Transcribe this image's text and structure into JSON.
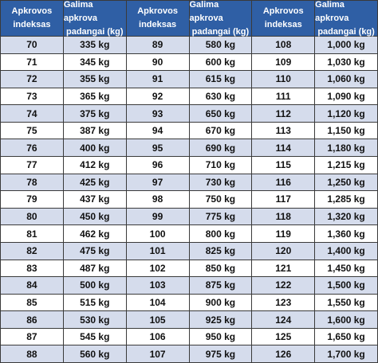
{
  "table": {
    "headers": [
      [
        "Apkrovos",
        "indeksas"
      ],
      [
        "Galima apkrova",
        "padangai (kg)"
      ],
      [
        "Apkrovos",
        "indeksas"
      ],
      [
        "Galima apkrova",
        "padangai (kg)"
      ],
      [
        "Apkrovos",
        "indeksas"
      ],
      [
        "Galima apkrova",
        "padangai (kg)"
      ]
    ],
    "rows": [
      [
        "70",
        "335 kg",
        "89",
        "580 kg",
        "108",
        "1,000 kg"
      ],
      [
        "71",
        "345 kg",
        "90",
        "600 kg",
        "109",
        "1,030 kg"
      ],
      [
        "72",
        "355 kg",
        "91",
        "615 kg",
        "110",
        "1,060 kg"
      ],
      [
        "73",
        "365 kg",
        "92",
        "630 kg",
        "111",
        "1,090 kg"
      ],
      [
        "74",
        "375 kg",
        "93",
        "650 kg",
        "112",
        "1,120 kg"
      ],
      [
        "75",
        "387 kg",
        "94",
        "670 kg",
        "113",
        "1,150 kg"
      ],
      [
        "76",
        "400 kg",
        "95",
        "690 kg",
        "114",
        "1,180 kg"
      ],
      [
        "77",
        "412 kg",
        "96",
        "710 kg",
        "115",
        "1,215 kg"
      ],
      [
        "78",
        "425 kg",
        "97",
        "730 kg",
        "116",
        "1,250 kg"
      ],
      [
        "79",
        "437 kg",
        "98",
        "750 kg",
        "117",
        "1,285 kg"
      ],
      [
        "80",
        "450 kg",
        "99",
        "775 kg",
        "118",
        "1,320 kg"
      ],
      [
        "81",
        "462 kg",
        "100",
        "800 kg",
        "119",
        "1,360 kg"
      ],
      [
        "82",
        "475 kg",
        "101",
        "825 kg",
        "120",
        "1,400 kg"
      ],
      [
        "83",
        "487 kg",
        "102",
        "850 kg",
        "121",
        "1,450 kg"
      ],
      [
        "84",
        "500 kg",
        "103",
        "875 kg",
        "122",
        "1,500 kg"
      ],
      [
        "85",
        "515 kg",
        "104",
        "900 kg",
        "123",
        "1,550 kg"
      ],
      [
        "86",
        "530 kg",
        "105",
        "925 kg",
        "124",
        "1,600 kg"
      ],
      [
        "87",
        "545 kg",
        "106",
        "950 kg",
        "125",
        "1,650 kg"
      ],
      [
        "88",
        "560 kg",
        "107",
        "975 kg",
        "126",
        "1,700 kg"
      ]
    ]
  }
}
